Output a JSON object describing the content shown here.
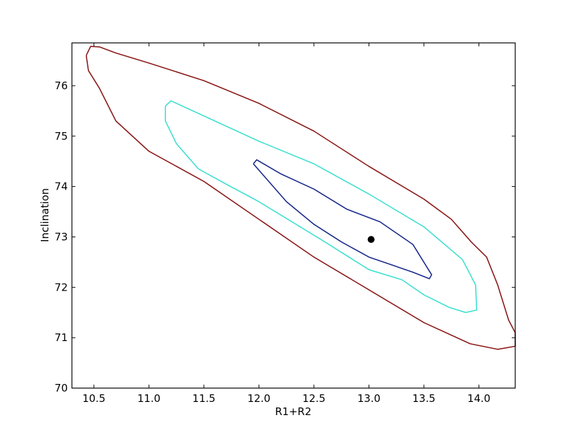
{
  "chart_data": {
    "type": "contour",
    "xlabel": "R1+R2",
    "ylabel": "Inclination",
    "xlim": [
      10.3,
      14.33
    ],
    "ylim": [
      70,
      76.85
    ],
    "xticks": [
      "10.5",
      "11.0",
      "11.5",
      "12.0",
      "12.5",
      "13.0",
      "13.5",
      "14.0"
    ],
    "yticks": [
      "70",
      "71",
      "72",
      "73",
      "74",
      "75",
      "76"
    ],
    "grid": false,
    "best_fit_point": {
      "x": 13.02,
      "y": 72.95,
      "color": "#000000"
    },
    "contours": [
      {
        "color": "#8b1a1a",
        "points": [
          [
            10.43,
            76.6
          ],
          [
            10.47,
            76.78
          ],
          [
            10.55,
            76.77
          ],
          [
            10.7,
            76.65
          ],
          [
            11.0,
            76.45
          ],
          [
            11.5,
            76.1
          ],
          [
            12.0,
            75.65
          ],
          [
            12.5,
            75.1
          ],
          [
            12.75,
            74.75
          ],
          [
            13.0,
            74.4
          ],
          [
            13.5,
            73.75
          ],
          [
            13.75,
            73.35
          ],
          [
            13.93,
            72.9
          ],
          [
            14.07,
            72.6
          ],
          [
            14.17,
            72.05
          ],
          [
            14.27,
            71.35
          ],
          [
            14.33,
            71.1
          ],
          [
            14.33,
            70.83
          ],
          [
            14.17,
            70.77
          ],
          [
            13.92,
            70.88
          ],
          [
            13.5,
            71.3
          ],
          [
            13.0,
            71.95
          ],
          [
            12.5,
            72.6
          ],
          [
            12.0,
            73.35
          ],
          [
            11.5,
            74.1
          ],
          [
            11.0,
            74.7
          ],
          [
            10.7,
            75.3
          ],
          [
            10.55,
            75.95
          ],
          [
            10.45,
            76.3
          ],
          [
            10.43,
            76.6
          ]
        ]
      },
      {
        "color": "#40e0d0",
        "points": [
          [
            11.15,
            75.6
          ],
          [
            11.2,
            75.7
          ],
          [
            11.5,
            75.4
          ],
          [
            12.0,
            74.9
          ],
          [
            12.5,
            74.45
          ],
          [
            13.0,
            73.85
          ],
          [
            13.5,
            73.2
          ],
          [
            13.85,
            72.55
          ],
          [
            13.97,
            72.05
          ],
          [
            13.98,
            71.55
          ],
          [
            13.88,
            71.5
          ],
          [
            13.73,
            71.6
          ],
          [
            13.5,
            71.85
          ],
          [
            13.3,
            72.15
          ],
          [
            13.0,
            72.35
          ],
          [
            12.6,
            72.9
          ],
          [
            12.3,
            73.3
          ],
          [
            12.0,
            73.7
          ],
          [
            11.7,
            74.05
          ],
          [
            11.45,
            74.35
          ],
          [
            11.25,
            74.85
          ],
          [
            11.15,
            75.3
          ],
          [
            11.15,
            75.6
          ]
        ]
      },
      {
        "color": "#1a2a8a",
        "points": [
          [
            11.95,
            74.45
          ],
          [
            11.98,
            74.53
          ],
          [
            12.2,
            74.25
          ],
          [
            12.5,
            73.95
          ],
          [
            12.8,
            73.55
          ],
          [
            13.1,
            73.3
          ],
          [
            13.4,
            72.85
          ],
          [
            13.57,
            72.25
          ],
          [
            13.55,
            72.17
          ],
          [
            13.4,
            72.3
          ],
          [
            13.2,
            72.45
          ],
          [
            13.0,
            72.6
          ],
          [
            12.75,
            72.9
          ],
          [
            12.5,
            73.25
          ],
          [
            12.25,
            73.7
          ],
          [
            12.05,
            74.2
          ],
          [
            11.95,
            74.45
          ]
        ]
      }
    ]
  }
}
